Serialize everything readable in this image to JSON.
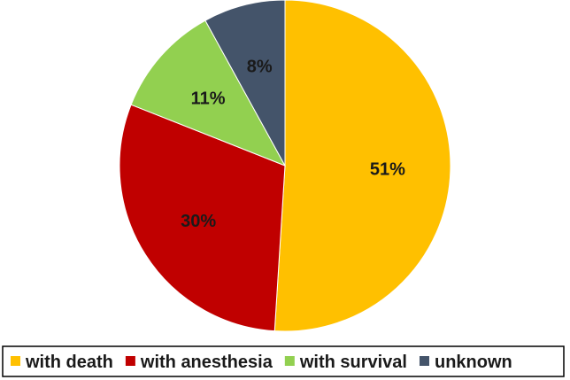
{
  "chart_data": {
    "type": "pie",
    "start_angle_deg": 0,
    "direction": "clockwise",
    "slices": [
      {
        "label": "with death",
        "value": 51,
        "display": "51%",
        "color": "#FFC000"
      },
      {
        "label": "with anesthesia",
        "value": 30,
        "display": "30%",
        "color": "#C00000"
      },
      {
        "label": "with survival",
        "value": 11,
        "display": "11%",
        "color": "#92D050"
      },
      {
        "label": "unknown",
        "value": 8,
        "display": "8%",
        "color": "#44546A"
      }
    ],
    "legend": {
      "placement": "bottom",
      "border": true
    }
  }
}
